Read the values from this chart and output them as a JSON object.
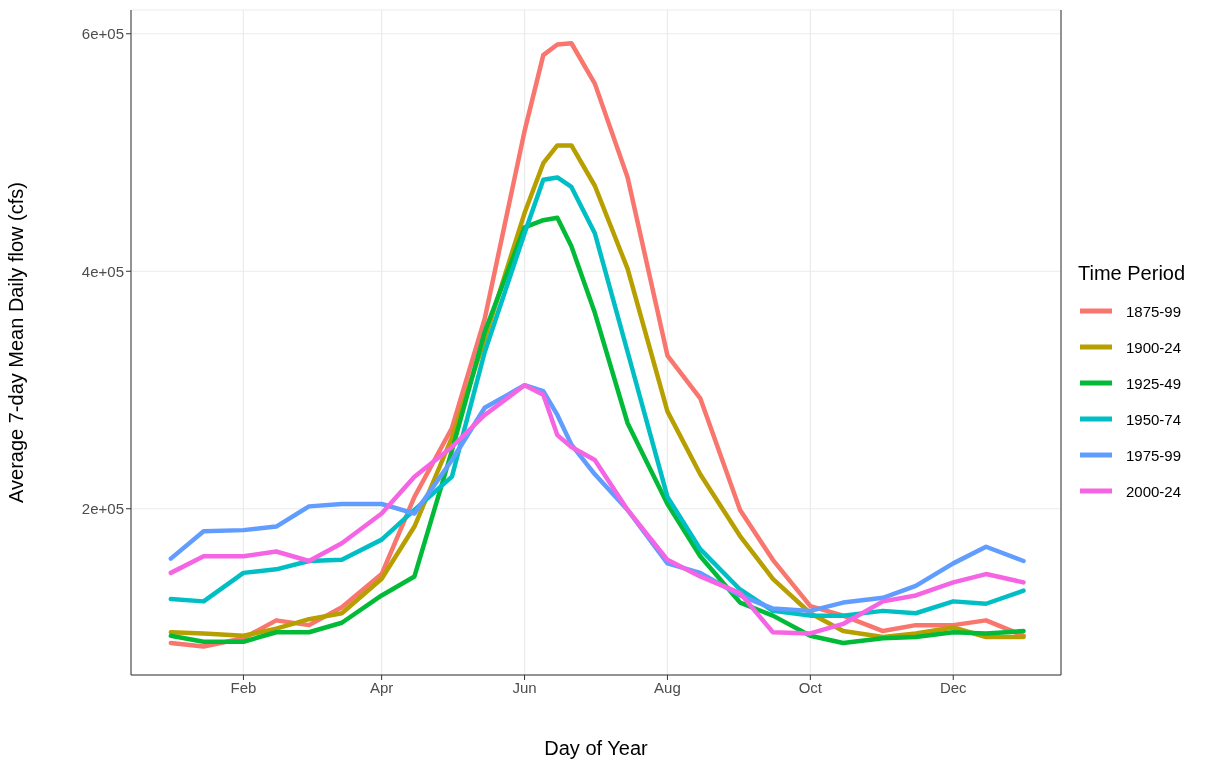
{
  "chart_data": {
    "type": "line",
    "xlabel": "Day of Year",
    "ylabel": "Average 7-day Mean Daily flow (cfs)",
    "legend_title": "Time Period",
    "legend": "right",
    "grid": true,
    "line_style": "solid",
    "marker": "none",
    "x": [
      "--01-01",
      "--01-15",
      "--02-01",
      "--02-15",
      "--03-01",
      "--03-15",
      "--04-01",
      "--04-15",
      "--05-01",
      "--05-15",
      "--06-01",
      "--06-09",
      "--06-15",
      "--06-21",
      "--07-01",
      "--07-15",
      "--08-01",
      "--08-15",
      "--09-01",
      "--09-15",
      "--10-01",
      "--10-15",
      "--11-01",
      "--11-15",
      "--12-01",
      "--12-15",
      "--12-31"
    ],
    "xlim": [
      "2000-12-15",
      "2002-01-16"
    ],
    "xticks": [
      {
        "value": "--02-01",
        "label": "Feb"
      },
      {
        "value": "--04-01",
        "label": "Apr"
      },
      {
        "value": "--06-01",
        "label": "Jun"
      },
      {
        "value": "--08-01",
        "label": "Aug"
      },
      {
        "value": "--10-01",
        "label": "Oct"
      },
      {
        "value": "--12-01",
        "label": "Dec"
      }
    ],
    "ylim": [
      60000,
      620000
    ],
    "yticks": [
      {
        "value": 200000,
        "label": "2e+05"
      },
      {
        "value": 400000,
        "label": "4e+05"
      },
      {
        "value": 600000,
        "label": "6e+05"
      }
    ],
    "series": [
      {
        "name": "1875-99",
        "color": "#f8766d",
        "values": [
          87000,
          84000,
          91000,
          106000,
          102000,
          117000,
          145000,
          210000,
          268000,
          360000,
          518000,
          582000,
          591000,
          592000,
          558000,
          479000,
          329000,
          293000,
          199000,
          157000,
          118000,
          110000,
          97000,
          102000,
          102000,
          106000,
          93000
        ]
      },
      {
        "name": "1900-24",
        "color": "#b79f00",
        "values": [
          96000,
          95000,
          93000,
          99000,
          107000,
          112000,
          141000,
          185000,
          260000,
          343000,
          449000,
          491000,
          506000,
          506000,
          472000,
          402000,
          282000,
          229000,
          177000,
          141000,
          112000,
          97000,
          92000,
          95000,
          100000,
          92000,
          92000
        ]
      },
      {
        "name": "1925-49",
        "color": "#00ba38",
        "values": [
          93000,
          88000,
          88000,
          96000,
          96000,
          104000,
          127000,
          143000,
          249000,
          349000,
          437000,
          443000,
          445000,
          421000,
          365000,
          272000,
          204000,
          160000,
          121000,
          110000,
          93000,
          87000,
          91000,
          92000,
          96000,
          95000,
          97000
        ]
      },
      {
        "name": "1950-74",
        "color": "#00bfc4",
        "values": [
          124000,
          122000,
          146000,
          149000,
          156000,
          157000,
          174000,
          199000,
          227000,
          332000,
          432000,
          477000,
          479000,
          471000,
          432000,
          332000,
          210000,
          166000,
          132000,
          114000,
          110000,
          110000,
          114000,
          112000,
          122000,
          120000,
          131000
        ]
      },
      {
        "name": "1975-99",
        "color": "#619cff",
        "values": [
          158000,
          181000,
          182000,
          185000,
          202000,
          204000,
          204000,
          196000,
          241000,
          285000,
          304000,
          299000,
          279000,
          254000,
          229000,
          199000,
          154000,
          146000,
          127000,
          116000,
          114000,
          121000,
          125000,
          135000,
          154000,
          168000,
          156000
        ]
      },
      {
        "name": "2000-24",
        "color": "#f564e3",
        "values": [
          146000,
          160000,
          160000,
          164000,
          156000,
          171000,
          196000,
          227000,
          252000,
          279000,
          304000,
          296000,
          262000,
          252000,
          241000,
          199000,
          157000,
          143000,
          129000,
          96000,
          95000,
          103000,
          122000,
          127000,
          138000,
          145000,
          138000
        ]
      }
    ]
  }
}
